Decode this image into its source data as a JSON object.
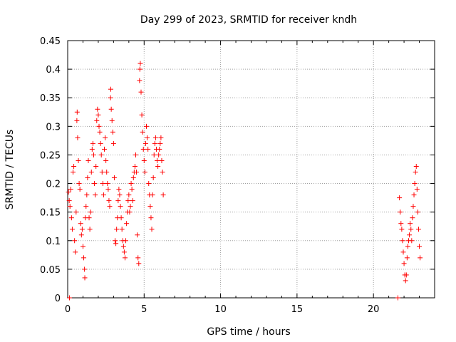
{
  "chart_data": {
    "type": "scatter",
    "title": "Day 299 of 2023, SRMTID for receiver kndh",
    "xlabel": "GPS time / hours",
    "ylabel": "SRMTID / TECUs",
    "xlim": [
      0,
      24
    ],
    "ylim": [
      0,
      0.45
    ],
    "x_ticks": [
      0,
      5,
      10,
      15,
      20
    ],
    "x_tick_labels": [
      "0",
      "5",
      "10",
      "15",
      "20"
    ],
    "y_ticks": [
      0,
      0.05,
      0.1,
      0.15,
      0.2,
      0.25,
      0.3,
      0.35,
      0.4,
      0.45
    ],
    "y_tick_labels": [
      "0",
      "0.05",
      "0.1",
      "0.15",
      "0.2",
      "0.25",
      "0.3",
      "0.35",
      "0.4",
      "0.45"
    ],
    "grid": true,
    "series": [
      {
        "name": "SRMTID",
        "marker": "+",
        "color": "#ff0000",
        "points": [
          [
            0.05,
            0.185
          ],
          [
            0.1,
            0.17
          ],
          [
            0.12,
            0.0
          ],
          [
            0.15,
            0.16
          ],
          [
            0.2,
            0.19
          ],
          [
            0.25,
            0.14
          ],
          [
            0.3,
            0.12
          ],
          [
            0.35,
            0.22
          ],
          [
            0.4,
            0.23
          ],
          [
            0.45,
            0.1
          ],
          [
            0.5,
            0.08
          ],
          [
            0.55,
            0.15
          ],
          [
            0.6,
            0.31
          ],
          [
            0.62,
            0.325
          ],
          [
            0.65,
            0.28
          ],
          [
            0.7,
            0.24
          ],
          [
            0.75,
            0.2
          ],
          [
            0.8,
            0.19
          ],
          [
            0.85,
            0.13
          ],
          [
            0.9,
            0.11
          ],
          [
            0.95,
            0.12
          ],
          [
            1.0,
            0.09
          ],
          [
            1.05,
            0.07
          ],
          [
            1.1,
            0.05
          ],
          [
            1.12,
            0.035
          ],
          [
            1.15,
            0.14
          ],
          [
            1.2,
            0.16
          ],
          [
            1.25,
            0.18
          ],
          [
            1.3,
            0.21
          ],
          [
            1.35,
            0.24
          ],
          [
            1.4,
            0.14
          ],
          [
            1.45,
            0.12
          ],
          [
            1.5,
            0.15
          ],
          [
            1.55,
            0.22
          ],
          [
            1.6,
            0.26
          ],
          [
            1.65,
            0.27
          ],
          [
            1.7,
            0.25
          ],
          [
            1.75,
            0.2
          ],
          [
            1.8,
            0.18
          ],
          [
            1.85,
            0.23
          ],
          [
            1.9,
            0.31
          ],
          [
            1.95,
            0.33
          ],
          [
            2.0,
            0.32
          ],
          [
            2.05,
            0.3
          ],
          [
            2.1,
            0.29
          ],
          [
            2.15,
            0.27
          ],
          [
            2.2,
            0.25
          ],
          [
            2.25,
            0.22
          ],
          [
            2.3,
            0.2
          ],
          [
            2.35,
            0.18
          ],
          [
            2.4,
            0.26
          ],
          [
            2.45,
            0.28
          ],
          [
            2.5,
            0.24
          ],
          [
            2.55,
            0.22
          ],
          [
            2.6,
            0.2
          ],
          [
            2.65,
            0.19
          ],
          [
            2.7,
            0.17
          ],
          [
            2.75,
            0.16
          ],
          [
            2.8,
            0.35
          ],
          [
            2.82,
            0.365
          ],
          [
            2.85,
            0.33
          ],
          [
            2.9,
            0.31
          ],
          [
            2.95,
            0.29
          ],
          [
            3.0,
            0.27
          ],
          [
            3.05,
            0.21
          ],
          [
            3.1,
            0.1
          ],
          [
            3.15,
            0.095
          ],
          [
            3.2,
            0.12
          ],
          [
            3.25,
            0.14
          ],
          [
            3.3,
            0.17
          ],
          [
            3.35,
            0.19
          ],
          [
            3.4,
            0.18
          ],
          [
            3.45,
            0.16
          ],
          [
            3.5,
            0.14
          ],
          [
            3.55,
            0.12
          ],
          [
            3.6,
            0.1
          ],
          [
            3.65,
            0.09
          ],
          [
            3.7,
            0.08
          ],
          [
            3.75,
            0.07
          ],
          [
            3.8,
            0.1
          ],
          [
            3.85,
            0.13
          ],
          [
            3.9,
            0.15
          ],
          [
            3.95,
            0.17
          ],
          [
            4.0,
            0.18
          ],
          [
            4.05,
            0.15
          ],
          [
            4.1,
            0.16
          ],
          [
            4.15,
            0.2
          ],
          [
            4.2,
            0.19
          ],
          [
            4.25,
            0.17
          ],
          [
            4.3,
            0.21
          ],
          [
            4.35,
            0.22
          ],
          [
            4.4,
            0.23
          ],
          [
            4.45,
            0.25
          ],
          [
            4.5,
            0.22
          ],
          [
            4.55,
            0.11
          ],
          [
            4.6,
            0.07
          ],
          [
            4.65,
            0.06
          ],
          [
            4.7,
            0.38
          ],
          [
            4.72,
            0.4
          ],
          [
            4.75,
            0.41
          ],
          [
            4.8,
            0.36
          ],
          [
            4.85,
            0.32
          ],
          [
            4.9,
            0.29
          ],
          [
            4.95,
            0.26
          ],
          [
            5.0,
            0.24
          ],
          [
            5.05,
            0.22
          ],
          [
            5.1,
            0.27
          ],
          [
            5.15,
            0.3
          ],
          [
            5.2,
            0.28
          ],
          [
            5.25,
            0.26
          ],
          [
            5.3,
            0.2
          ],
          [
            5.35,
            0.18
          ],
          [
            5.4,
            0.16
          ],
          [
            5.45,
            0.14
          ],
          [
            5.5,
            0.12
          ],
          [
            5.55,
            0.18
          ],
          [
            5.6,
            0.21
          ],
          [
            5.65,
            0.25
          ],
          [
            5.7,
            0.27
          ],
          [
            5.75,
            0.28
          ],
          [
            5.8,
            0.26
          ],
          [
            5.85,
            0.24
          ],
          [
            5.9,
            0.23
          ],
          [
            5.95,
            0.25
          ],
          [
            6.0,
            0.26
          ],
          [
            6.05,
            0.27
          ],
          [
            6.1,
            0.28
          ],
          [
            6.15,
            0.24
          ],
          [
            6.2,
            0.22
          ],
          [
            6.25,
            0.18
          ],
          [
            21.6,
            0.0
          ],
          [
            21.7,
            0.175
          ],
          [
            21.75,
            0.15
          ],
          [
            21.8,
            0.13
          ],
          [
            21.85,
            0.12
          ],
          [
            21.9,
            0.1
          ],
          [
            21.95,
            0.08
          ],
          [
            22.0,
            0.06
          ],
          [
            22.05,
            0.04
          ],
          [
            22.1,
            0.03
          ],
          [
            22.15,
            0.04
          ],
          [
            22.2,
            0.07
          ],
          [
            22.25,
            0.09
          ],
          [
            22.3,
            0.1
          ],
          [
            22.35,
            0.11
          ],
          [
            22.4,
            0.13
          ],
          [
            22.45,
            0.12
          ],
          [
            22.5,
            0.1
          ],
          [
            22.55,
            0.14
          ],
          [
            22.6,
            0.16
          ],
          [
            22.65,
            0.18
          ],
          [
            22.7,
            0.2
          ],
          [
            22.75,
            0.22
          ],
          [
            22.8,
            0.23
          ],
          [
            22.85,
            0.19
          ],
          [
            22.9,
            0.15
          ],
          [
            22.95,
            0.12
          ],
          [
            23.0,
            0.09
          ],
          [
            23.05,
            0.07
          ]
        ]
      }
    ]
  }
}
